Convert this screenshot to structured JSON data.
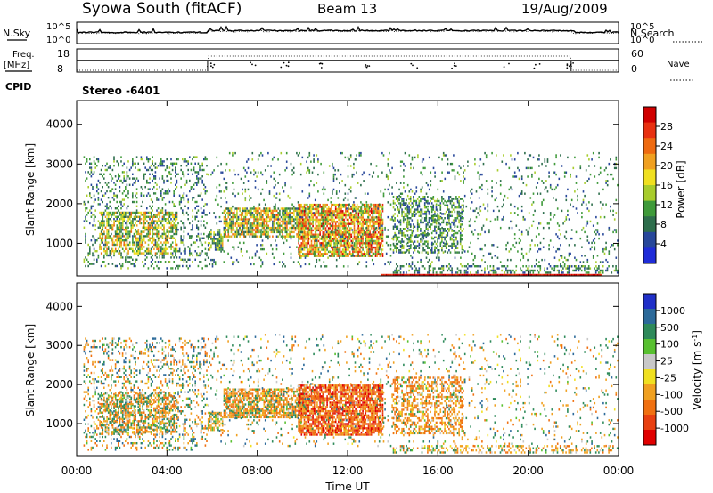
{
  "header": {
    "station": "Syowa South (fitACF)",
    "beam": "Beam 13",
    "date": "19/Aug/2009"
  },
  "status_panels": {
    "nsky_label": "N.Sky",
    "nsky_ticks": [
      "10^5",
      "10^0"
    ],
    "nsearch_label": "N.Search",
    "nsearch_ticks": [
      "10^5",
      "10^0"
    ],
    "freq_label": "Freq.",
    "freq_unit": "[MHz]",
    "freq_ticks": [
      "18",
      "8"
    ],
    "nave_label": "Nave",
    "nave_ticks": [
      "60",
      "0"
    ],
    "cpid_label": "CPID",
    "cpid_value": "Stereo -6401"
  },
  "x_axis": {
    "label": "Time UT",
    "ticks": [
      "00:00",
      "04:00",
      "08:00",
      "12:00",
      "16:00",
      "20:00",
      "00:00"
    ]
  },
  "chart_data": [
    {
      "type": "heatmap",
      "panel": "power",
      "x_range_hours": [
        0,
        24
      ],
      "ylabel": "Slant Range [km]",
      "ylim": [
        180,
        4600
      ],
      "y_ticks": [
        1000,
        2000,
        3000,
        4000
      ],
      "colorbar_label": "Power [dB]",
      "colorbar_ticks": [
        "4",
        "8",
        "12",
        "16",
        "20",
        "24",
        "28"
      ],
      "colorbar_colors": [
        "#1f2cd8",
        "#27479a",
        "#2e6e4c",
        "#3f9a3a",
        "#a8cc2c",
        "#f0e020",
        "#f0a020",
        "#ee6a10",
        "#e83010",
        "#d00000"
      ],
      "regions": [
        {
          "t": [
            0.3,
            5.8
          ],
          "r": [
            300,
            3200
          ],
          "d": 0.22,
          "pow": [
            4,
            14
          ]
        },
        {
          "t": [
            1.0,
            4.5
          ],
          "r": [
            700,
            1800
          ],
          "d": 0.55,
          "pow": [
            8,
            24
          ]
        },
        {
          "t": [
            5.8,
            6.5
          ],
          "r": [
            800,
            1300
          ],
          "d": 0.7,
          "pow": [
            4,
            20
          ]
        },
        {
          "t": [
            6.5,
            10.2
          ],
          "r": [
            1100,
            1900
          ],
          "d": 0.75,
          "pow": [
            6,
            26
          ]
        },
        {
          "t": [
            9.8,
            13.6
          ],
          "r": [
            650,
            2000
          ],
          "d": 0.8,
          "pow": [
            10,
            30
          ]
        },
        {
          "t": [
            5.8,
            24
          ],
          "r": [
            350,
            3300
          ],
          "d": 0.08,
          "pow": [
            4,
            14
          ]
        },
        {
          "t": [
            14.0,
            17.2
          ],
          "r": [
            700,
            2200
          ],
          "d": 0.45,
          "pow": [
            4,
            16
          ]
        },
        {
          "t": [
            14.0,
            24.0
          ],
          "r": [
            200,
            450
          ],
          "d": 0.35,
          "pow": [
            4,
            14
          ]
        },
        {
          "t": [
            13.5,
            23.3
          ],
          "r": [
            180,
            230
          ],
          "d": 1.0,
          "pow": [
            26,
            32
          ]
        }
      ]
    },
    {
      "type": "heatmap",
      "panel": "velocity",
      "x_range_hours": [
        0,
        24
      ],
      "ylabel": "Slant Range [km]",
      "ylim": [
        180,
        4600
      ],
      "y_ticks": [
        1000,
        2000,
        3000,
        4000
      ],
      "colorbar_label": "Velocity [m s^-1]",
      "colorbar_ticks": [
        "1000",
        "500",
        "100",
        "25",
        "-25",
        "-100",
        "-500",
        "-1000"
      ],
      "colorbar_colors": [
        "#2030c8",
        "#2c6a9a",
        "#2e8a5a",
        "#58c030",
        "#c8c8c8",
        "#f0e020",
        "#f0a020",
        "#f07010",
        "#e84010",
        "#e00000"
      ],
      "regions": [
        {
          "t": [
            0.3,
            5.8
          ],
          "r": [
            300,
            3200
          ],
          "d": 0.22,
          "vel": [
            -500,
            500
          ]
        },
        {
          "t": [
            1.0,
            4.5
          ],
          "r": [
            700,
            1800
          ],
          "d": 0.55,
          "vel": [
            -500,
            300
          ]
        },
        {
          "t": [
            5.8,
            6.5
          ],
          "r": [
            800,
            1300
          ],
          "d": 0.7,
          "vel": [
            -300,
            100
          ]
        },
        {
          "t": [
            6.5,
            10.2
          ],
          "r": [
            1100,
            1900
          ],
          "d": 0.75,
          "vel": [
            -600,
            200
          ]
        },
        {
          "t": [
            9.8,
            13.6
          ],
          "r": [
            650,
            2000
          ],
          "d": 0.8,
          "vel": [
            -1000,
            -100
          ]
        },
        {
          "t": [
            5.8,
            24
          ],
          "r": [
            350,
            3300
          ],
          "d": 0.08,
          "vel": [
            -400,
            400
          ]
        },
        {
          "t": [
            14.0,
            17.2
          ],
          "r": [
            700,
            2200
          ],
          "d": 0.45,
          "vel": [
            -600,
            100
          ]
        },
        {
          "t": [
            14.0,
            24.0
          ],
          "r": [
            200,
            450
          ],
          "d": 0.35,
          "vel": [
            -400,
            200
          ]
        }
      ]
    }
  ]
}
